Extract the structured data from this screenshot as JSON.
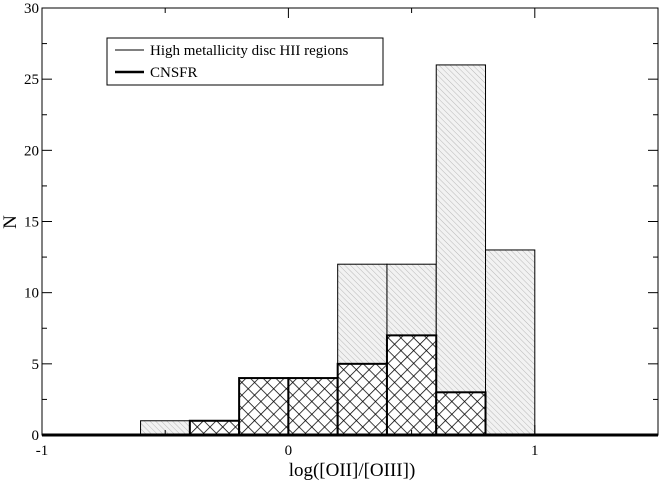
{
  "chart_data": {
    "type": "bar",
    "xlabel": "log([OII]/[OIII])",
    "ylabel": "N",
    "xlim": [
      -1,
      1.5
    ],
    "ylim": [
      0,
      30
    ],
    "x_ticks": [
      -1,
      0,
      1
    ],
    "x_tick_labels": [
      "-1",
      "0",
      "1"
    ],
    "y_ticks": [
      0,
      5,
      10,
      15,
      20,
      25,
      30
    ],
    "y_tick_labels": [
      "0",
      "5",
      "10",
      "15",
      "20",
      "25",
      "30"
    ],
    "bin_width": 0.2,
    "bins": [
      -0.6,
      -0.4,
      -0.2,
      0.0,
      0.2,
      0.4,
      0.6,
      0.8
    ],
    "grid": false,
    "legend_position": "top-left",
    "series": [
      {
        "name": "High metallicity disc HII regions",
        "fill": "diagonal-hatch",
        "values": [
          1,
          0,
          0,
          0,
          12,
          12,
          26,
          13
        ]
      },
      {
        "name": "CNSFR",
        "fill": "cross-hatch",
        "values": [
          0,
          1,
          4,
          4,
          5,
          7,
          3,
          0
        ]
      }
    ]
  }
}
